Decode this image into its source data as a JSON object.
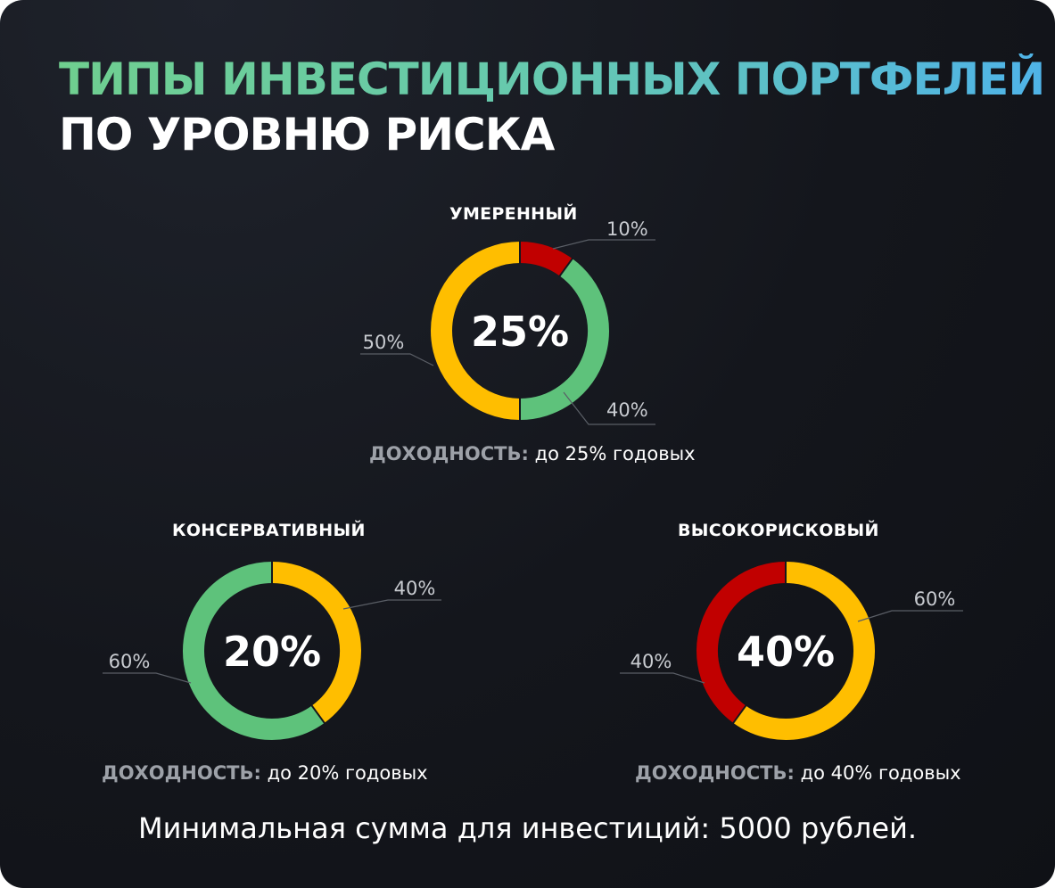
{
  "title": {
    "accent": "ТИПЫ ИНВЕСТИЦИОННЫХ ПОРТФЕЛЕЙ",
    "rest": "ПО УРОВНЮ РИСКА"
  },
  "colors": {
    "red": "#c10000",
    "green": "#5ec27b",
    "yellow": "#ffbe00",
    "background": "#15171d"
  },
  "yield_key": "ДОХОДНОСТЬ:",
  "footnote": "Минимальная сумма для инвестиций: 5000 рублей.",
  "chart_data": [
    {
      "type": "donut",
      "title": "УМЕРЕННЫЙ",
      "center": "25%",
      "yield_value": "до 25% годовых",
      "slices": [
        {
          "value": 10,
          "label": "10%",
          "color": "#c10000"
        },
        {
          "value": 40,
          "label": "40%",
          "color": "#5ec27b"
        },
        {
          "value": 50,
          "label": "50%",
          "color": "#ffbe00"
        }
      ]
    },
    {
      "type": "donut",
      "title": "КОНСЕРВАТИВНЫЙ",
      "center": "20%",
      "yield_value": "до 20% годовых",
      "slices": [
        {
          "value": 40,
          "label": "40%",
          "color": "#ffbe00"
        },
        {
          "value": 60,
          "label": "60%",
          "color": "#5ec27b"
        }
      ]
    },
    {
      "type": "donut",
      "title": "ВЫСОКОРИСКОВЫЙ",
      "center": "40%",
      "yield_value": "до 40% годовых",
      "slices": [
        {
          "value": 60,
          "label": "60%",
          "color": "#ffbe00"
        },
        {
          "value": 40,
          "label": "40%",
          "color": "#c10000"
        }
      ]
    }
  ]
}
